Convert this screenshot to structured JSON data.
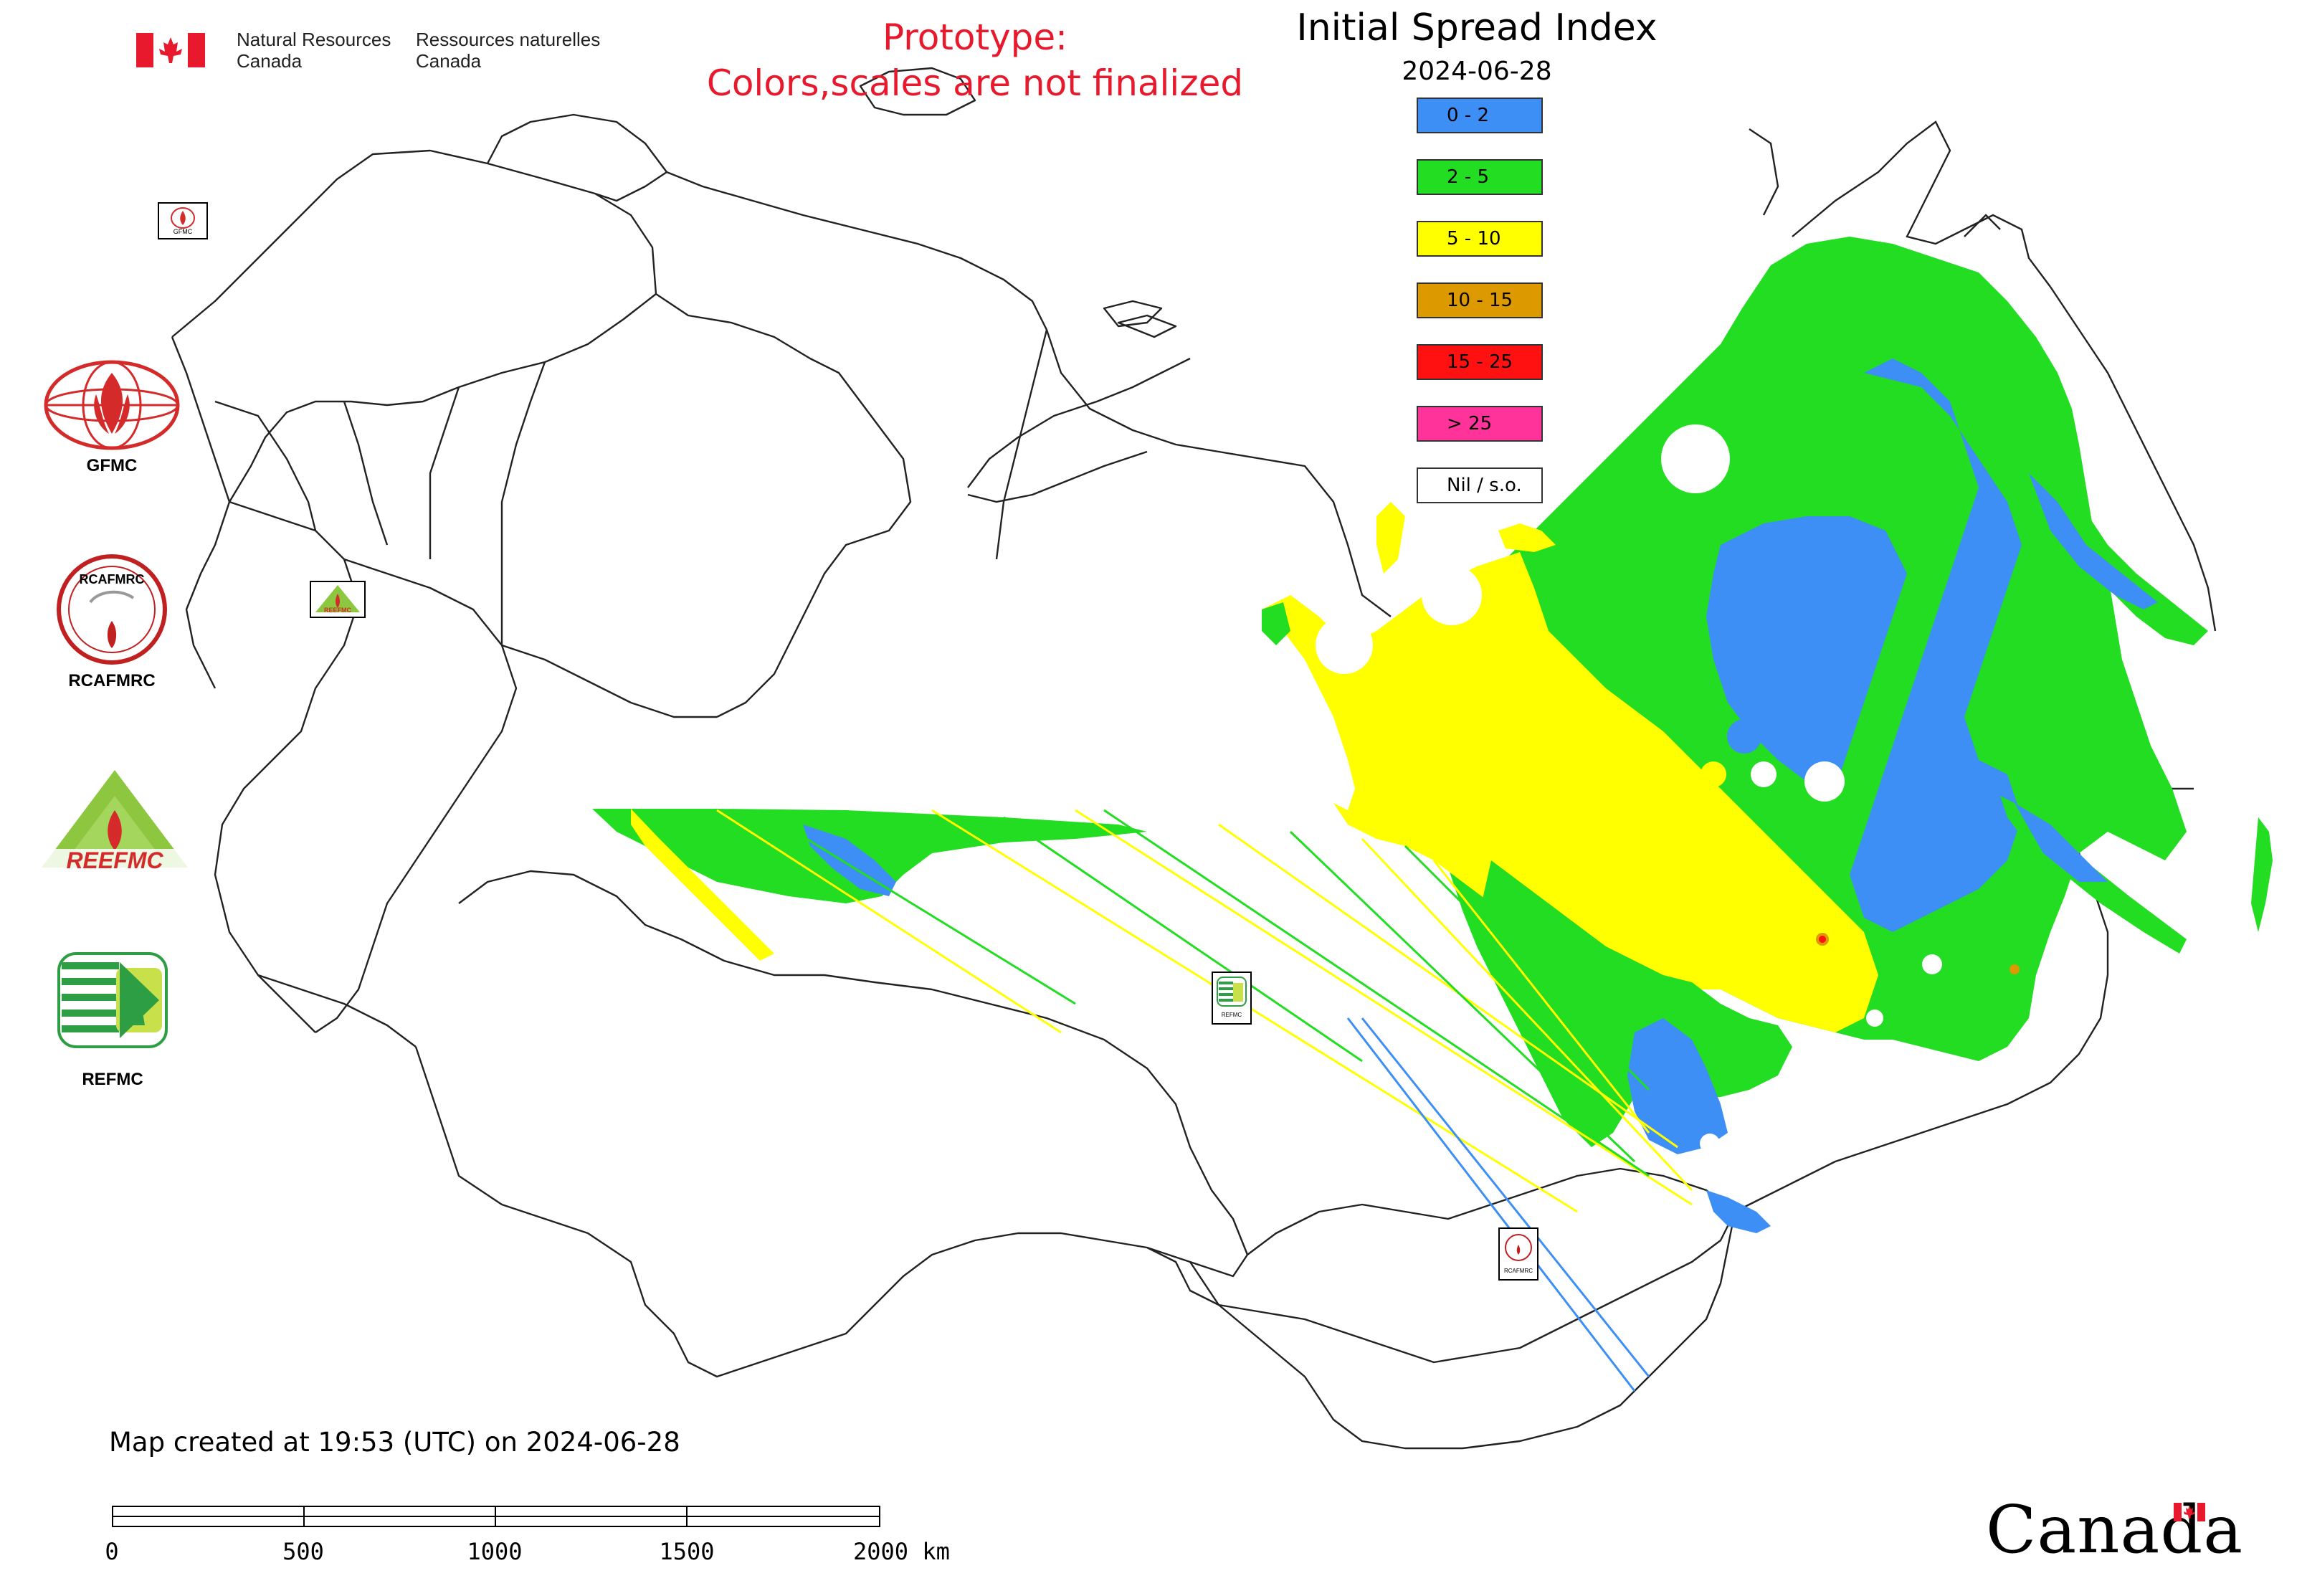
{
  "header": {
    "signature_en_line1": "Natural Resources",
    "signature_en_line2": "Canada",
    "signature_fr_line1": "Ressources naturelles",
    "signature_fr_line2": "Canada",
    "prototype_line1": "Prototype:",
    "prototype_line2": "Colors,scales are not finalized",
    "prototype_color": "#e8192c"
  },
  "map": {
    "title": "Initial Spread Index",
    "date": "2024-06-28"
  },
  "legend": {
    "items": [
      {
        "label": "0 - 2",
        "color": "#3d8ff5"
      },
      {
        "label": "2 - 5",
        "color": "#22dd22"
      },
      {
        "label": "5 - 10",
        "color": "#ffff00"
      },
      {
        "label": "10 - 15",
        "color": "#dd9900"
      },
      {
        "label": "15 - 25",
        "color": "#ff1111"
      },
      {
        "label": "> 25",
        "color": "#ff3399"
      },
      {
        "label": "Nil / s.o.",
        "color": "#ffffff"
      }
    ]
  },
  "logos": {
    "gfmc": "GFMC",
    "rcafmrc": "RCAFMRC",
    "reefmc": "REEFMC",
    "refmc": "REFMC",
    "reefmc_wordmark": "REEFMC",
    "rcafmrc_wordmark": "RCAFMRC"
  },
  "map_markers": {
    "gfmc_small": "GFMC",
    "reefmc_small": "REEFMC",
    "refmc_small": "REFMC",
    "rcafmrc_small": "RCAFMRC"
  },
  "footer": {
    "created": "Map created at 19:53 (UTC) on 2024-06-28",
    "scale_ticks": [
      "0",
      "500",
      "1000",
      "1500",
      "2000 km"
    ],
    "wordmark": "Canada"
  },
  "colors": {
    "blue": "#3d8ff5",
    "green": "#22dd22",
    "yellow": "#ffff00",
    "boundary": "#222222"
  }
}
